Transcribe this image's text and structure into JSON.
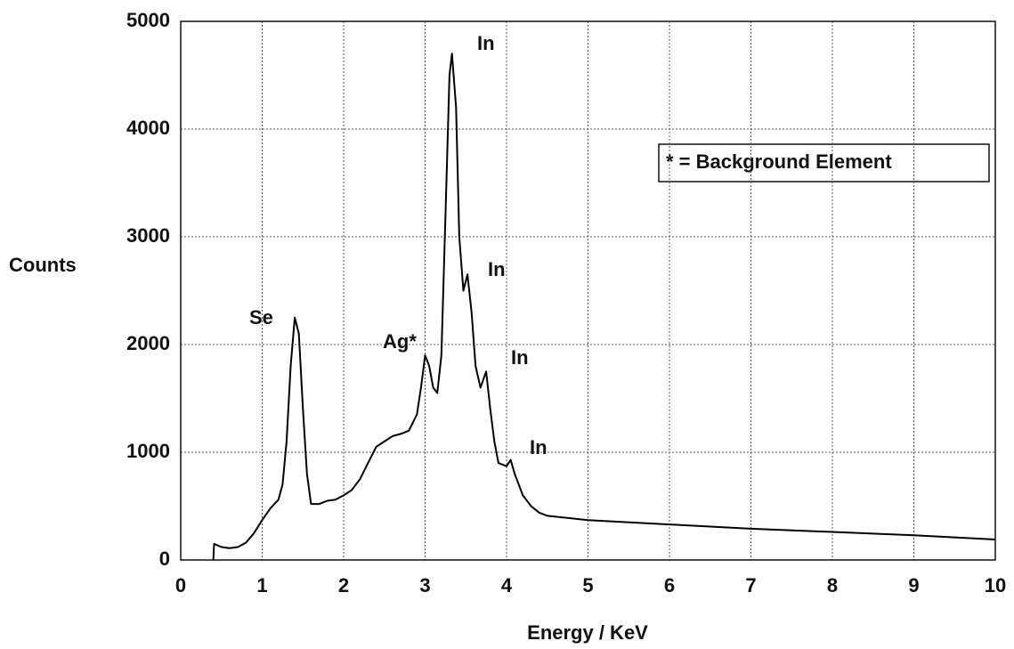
{
  "chart_data": {
    "type": "line",
    "xlabel": "Energy / KeV",
    "ylabel": "Counts",
    "x": [
      0.4,
      0.41,
      0.5,
      0.6,
      0.7,
      0.8,
      0.9,
      1.0,
      1.1,
      1.2,
      1.25,
      1.3,
      1.35,
      1.4,
      1.45,
      1.5,
      1.55,
      1.6,
      1.7,
      1.8,
      1.9,
      2.0,
      2.1,
      2.2,
      2.3,
      2.4,
      2.5,
      2.6,
      2.7,
      2.8,
      2.9,
      2.95,
      3.0,
      3.05,
      3.1,
      3.15,
      3.2,
      3.25,
      3.3,
      3.33,
      3.38,
      3.42,
      3.47,
      3.52,
      3.57,
      3.62,
      3.68,
      3.75,
      3.8,
      3.85,
      3.9,
      4.0,
      4.05,
      4.1,
      4.2,
      4.3,
      4.4,
      4.5,
      5,
      6,
      7,
      8,
      9,
      10
    ],
    "values": [
      0,
      150,
      120,
      110,
      120,
      160,
      250,
      370,
      480,
      560,
      700,
      1100,
      1800,
      2250,
      2100,
      1400,
      800,
      520,
      520,
      550,
      560,
      600,
      650,
      750,
      900,
      1050,
      1100,
      1150,
      1170,
      1200,
      1350,
      1600,
      1900,
      1800,
      1600,
      1550,
      1900,
      3200,
      4500,
      4700,
      4200,
      3000,
      2500,
      2650,
      2300,
      1800,
      1600,
      1750,
      1400,
      1100,
      900,
      870,
      930,
      800,
      600,
      500,
      440,
      410,
      370,
      330,
      290,
      260,
      230,
      190
    ],
    "color": "#000000",
    "xlim": [
      0,
      10
    ],
    "xticks": [
      0,
      1,
      2,
      3,
      4,
      5,
      6,
      7,
      8,
      9,
      10
    ],
    "ylim": [
      0,
      5000
    ],
    "yticks": [
      0,
      1000,
      2000,
      3000,
      4000,
      5000
    ],
    "grid": true,
    "annotations": [
      "Se",
      "Ag*",
      "In",
      "In",
      "In",
      "In"
    ],
    "note": "* = Background Element"
  }
}
